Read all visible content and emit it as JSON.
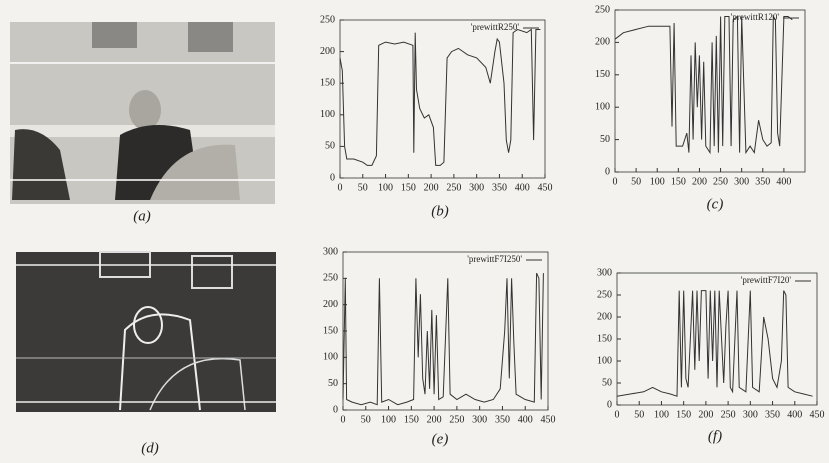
{
  "images": [
    {
      "caption": "(a)"
    },
    {
      "caption": "(d)"
    }
  ],
  "chart_data": [
    {
      "type": "line",
      "caption": "(b)",
      "xlim": [
        0,
        450
      ],
      "ylim": [
        0,
        250
      ],
      "xticks": [
        0,
        50,
        100,
        150,
        200,
        250,
        300,
        350,
        400,
        450
      ],
      "yticks": [
        0,
        50,
        100,
        150,
        200,
        250
      ],
      "x": [
        0,
        5,
        10,
        15,
        30,
        50,
        60,
        70,
        80,
        85,
        100,
        120,
        140,
        160,
        162,
        165,
        168,
        175,
        185,
        195,
        205,
        210,
        220,
        228,
        235,
        245,
        260,
        280,
        300,
        320,
        330,
        340,
        345,
        350,
        360,
        365,
        370,
        375,
        380,
        390,
        410,
        420,
        425,
        430,
        440
      ],
      "series": [
        {
          "name": "'prewittR250'",
          "color": "#333333",
          "values": [
            190,
            170,
            50,
            30,
            30,
            25,
            20,
            20,
            35,
            210,
            215,
            212,
            215,
            210,
            40,
            230,
            140,
            110,
            95,
            100,
            80,
            20,
            20,
            25,
            190,
            200,
            205,
            195,
            190,
            175,
            150,
            200,
            220,
            215,
            150,
            60,
            40,
            60,
            230,
            235,
            230,
            235,
            60,
            235,
            235
          ]
        }
      ]
    },
    {
      "type": "line",
      "caption": "(c)",
      "xlim": [
        0,
        450
      ],
      "ylim": [
        0,
        250
      ],
      "xticks": [
        0,
        50,
        100,
        150,
        200,
        250,
        300,
        350,
        400
      ],
      "yticks": [
        0,
        50,
        100,
        150,
        200,
        250
      ],
      "x": [
        0,
        20,
        50,
        80,
        100,
        130,
        135,
        140,
        145,
        160,
        170,
        175,
        180,
        185,
        190,
        195,
        200,
        205,
        210,
        215,
        225,
        230,
        235,
        240,
        245,
        250,
        255,
        260,
        270,
        275,
        280,
        290,
        295,
        300,
        310,
        320,
        330,
        340,
        350,
        360,
        370,
        375,
        380,
        385,
        390,
        400,
        410,
        420
      ],
      "series": [
        {
          "name": "'prewittR120'",
          "color": "#333333",
          "values": [
            205,
            215,
            220,
            225,
            225,
            225,
            70,
            230,
            40,
            40,
            60,
            30,
            180,
            50,
            200,
            100,
            180,
            50,
            170,
            40,
            30,
            200,
            40,
            210,
            30,
            240,
            40,
            240,
            240,
            40,
            235,
            240,
            30,
            240,
            30,
            40,
            30,
            80,
            50,
            40,
            45,
            240,
            235,
            60,
            40,
            240,
            240,
            235
          ]
        }
      ]
    },
    {
      "type": "line",
      "caption": "(e)",
      "xlim": [
        0,
        450
      ],
      "ylim": [
        0,
        300
      ],
      "xticks": [
        0,
        50,
        100,
        150,
        200,
        250,
        300,
        350,
        400,
        450
      ],
      "yticks": [
        0,
        50,
        100,
        150,
        200,
        250,
        300
      ],
      "x": [
        0,
        5,
        8,
        20,
        40,
        60,
        75,
        80,
        85,
        100,
        120,
        140,
        155,
        160,
        165,
        170,
        175,
        180,
        185,
        190,
        195,
        200,
        205,
        210,
        220,
        230,
        235,
        250,
        270,
        290,
        310,
        330,
        345,
        355,
        360,
        365,
        370,
        375,
        380,
        400,
        420,
        425,
        430,
        435,
        440
      ],
      "series": [
        {
          "name": "'prewittF7I250'",
          "color": "#333333",
          "values": [
            20,
            250,
            20,
            15,
            10,
            15,
            10,
            250,
            15,
            20,
            10,
            15,
            20,
            250,
            100,
            220,
            60,
            30,
            150,
            40,
            190,
            30,
            180,
            20,
            25,
            250,
            30,
            20,
            30,
            20,
            15,
            20,
            40,
            150,
            250,
            60,
            250,
            130,
            30,
            20,
            15,
            260,
            250,
            20,
            260
          ]
        }
      ]
    },
    {
      "type": "line",
      "caption": "(f)",
      "xlim": [
        0,
        450
      ],
      "ylim": [
        0,
        300
      ],
      "xticks": [
        0,
        50,
        100,
        150,
        200,
        250,
        300,
        350,
        400,
        450
      ],
      "yticks": [
        0,
        50,
        100,
        150,
        200,
        250,
        300
      ],
      "x": [
        0,
        30,
        60,
        80,
        100,
        120,
        135,
        140,
        145,
        150,
        155,
        160,
        170,
        175,
        180,
        185,
        190,
        200,
        205,
        210,
        215,
        220,
        225,
        230,
        240,
        245,
        250,
        255,
        260,
        270,
        275,
        290,
        300,
        305,
        320,
        330,
        340,
        350,
        360,
        370,
        375,
        380,
        385,
        400,
        420,
        440
      ],
      "series": [
        {
          "name": "'prewittF7I20'",
          "color": "#333333",
          "values": [
            20,
            25,
            30,
            40,
            30,
            25,
            20,
            260,
            40,
            260,
            60,
            40,
            260,
            80,
            260,
            100,
            260,
            260,
            60,
            260,
            100,
            260,
            40,
            260,
            50,
            180,
            260,
            40,
            30,
            260,
            40,
            30,
            260,
            40,
            30,
            200,
            150,
            60,
            40,
            100,
            260,
            250,
            40,
            30,
            25,
            20
          ]
        }
      ]
    }
  ]
}
